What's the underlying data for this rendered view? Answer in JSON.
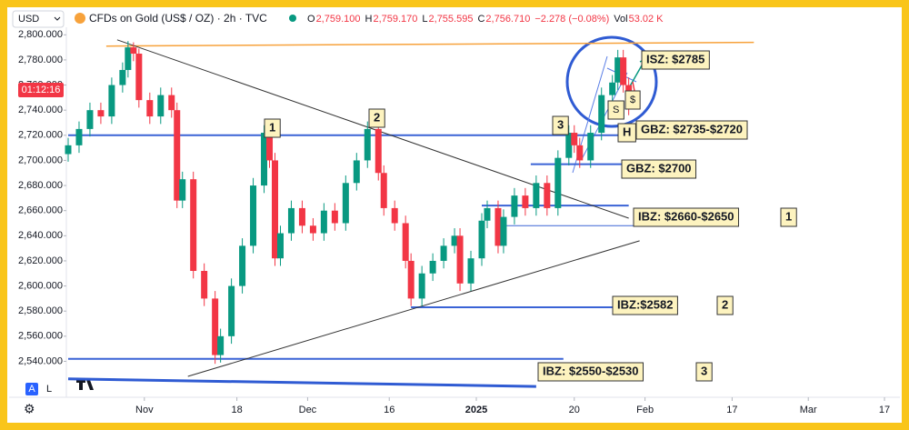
{
  "chart_data": {
    "type": "candlestick",
    "currency": "USD",
    "title": "CFDs on Gold (US$ / OZ) · 2h · TVC",
    "readout": [
      {
        "key": "O",
        "text": "2,759.100"
      },
      {
        "key": "H",
        "text": "2,759.170"
      },
      {
        "key": "L",
        "text": "2,755.595"
      },
      {
        "key": "C",
        "text": "2,756.710"
      },
      {
        "key": "",
        "text": "−2.278 (−0.08%)"
      },
      {
        "key": "Vol",
        "text": "53.02 K"
      }
    ],
    "countdown": "01:12:16",
    "buttons": [
      "A",
      "L"
    ],
    "xlim": [
      0,
      152
    ],
    "xticks": [
      {
        "value": 14,
        "label": "Nov"
      },
      {
        "value": 31,
        "label": "18"
      },
      {
        "value": 44,
        "label": "Dec"
      },
      {
        "value": 59,
        "label": "16"
      },
      {
        "value": 75,
        "label": "2025"
      },
      {
        "value": 93,
        "label": "20"
      },
      {
        "value": 106,
        "label": "Feb"
      },
      {
        "value": 122,
        "label": "17"
      },
      {
        "value": 136,
        "label": "Mar"
      },
      {
        "value": 150,
        "label": "17"
      }
    ],
    "ylim": [
      2515,
      2806
    ],
    "yticks": [
      {
        "value": 2540,
        "label": "2,540.000"
      },
      {
        "value": 2560,
        "label": "2,560.000"
      },
      {
        "value": 2580,
        "label": "2,580.000"
      },
      {
        "value": 2600,
        "label": "2,600.000"
      },
      {
        "value": 2620,
        "label": "2,620.000"
      },
      {
        "value": 2640,
        "label": "2,640.000"
      },
      {
        "value": 2660,
        "label": "2,660.000"
      },
      {
        "value": 2680,
        "label": "2,680.000"
      },
      {
        "value": 2700,
        "label": "2,700.000"
      },
      {
        "value": 2720,
        "label": "2,720.000"
      },
      {
        "value": 2740,
        "label": "2,740.000"
      },
      {
        "value": 2760,
        "label": "2,760.000"
      },
      {
        "value": 2780,
        "label": "2,780.000"
      },
      {
        "value": 2800,
        "label": "2,800.000"
      }
    ],
    "up_color": "#089981",
    "down_color": "#f23645",
    "x": [
      0,
      2,
      4,
      6,
      8,
      10,
      11,
      12,
      13,
      15,
      17,
      19,
      20,
      21,
      23,
      25,
      27,
      28,
      30,
      32,
      34,
      36,
      37,
      38,
      39,
      41,
      43,
      45,
      47,
      49,
      51,
      53,
      55,
      57,
      58,
      60,
      62,
      63,
      65,
      67,
      69,
      71,
      72,
      74,
      76,
      77,
      79,
      80,
      82,
      84,
      86,
      88,
      90,
      92,
      93,
      94,
      96,
      98,
      100,
      101,
      102,
      103
    ],
    "open": [
      2705,
      2712,
      2725,
      2740,
      2735,
      2760,
      2772,
      2790,
      2785,
      2748,
      2735,
      2752,
      2740,
      2668,
      2685,
      2612,
      2590,
      2545,
      2560,
      2600,
      2632,
      2680,
      2722,
      2700,
      2622,
      2642,
      2662,
      2648,
      2642,
      2660,
      2650,
      2682,
      2700,
      2725,
      2690,
      2662,
      2650,
      2620,
      2590,
      2610,
      2620,
      2632,
      2640,
      2602,
      2622,
      2652,
      2662,
      2632,
      2655,
      2672,
      2662,
      2682,
      2662,
      2702,
      2722,
      2712,
      2700,
      2722,
      2752,
      2762,
      2782,
      2760
    ],
    "high": [
      2718,
      2731,
      2746,
      2746,
      2766,
      2778,
      2795,
      2794,
      2789,
      2754,
      2758,
      2758,
      2746,
      2691,
      2691,
      2618,
      2596,
      2566,
      2606,
      2638,
      2686,
      2728,
      2728,
      2706,
      2648,
      2668,
      2668,
      2654,
      2666,
      2666,
      2688,
      2706,
      2731,
      2731,
      2696,
      2668,
      2656,
      2626,
      2616,
      2626,
      2638,
      2646,
      2646,
      2628,
      2658,
      2668,
      2668,
      2661,
      2678,
      2678,
      2688,
      2688,
      2708,
      2728,
      2728,
      2718,
      2728,
      2758,
      2768,
      2788,
      2788,
      2766
    ],
    "low": [
      2699,
      2706,
      2719,
      2729,
      2729,
      2754,
      2766,
      2779,
      2742,
      2729,
      2729,
      2734,
      2662,
      2662,
      2606,
      2584,
      2538,
      2539,
      2554,
      2594,
      2626,
      2674,
      2694,
      2616,
      2616,
      2636,
      2642,
      2636,
      2636,
      2644,
      2644,
      2676,
      2694,
      2684,
      2656,
      2644,
      2614,
      2584,
      2584,
      2604,
      2614,
      2626,
      2596,
      2596,
      2616,
      2646,
      2626,
      2626,
      2649,
      2656,
      2656,
      2656,
      2656,
      2696,
      2706,
      2694,
      2694,
      2716,
      2746,
      2756,
      2754,
      2736
    ],
    "close": [
      2712,
      2725,
      2740,
      2735,
      2760,
      2772,
      2790,
      2785,
      2748,
      2735,
      2752,
      2740,
      2668,
      2685,
      2612,
      2590,
      2545,
      2560,
      2600,
      2632,
      2680,
      2722,
      2700,
      2622,
      2642,
      2662,
      2648,
      2642,
      2660,
      2650,
      2682,
      2700,
      2725,
      2690,
      2662,
      2650,
      2620,
      2590,
      2610,
      2620,
      2632,
      2640,
      2602,
      2622,
      2652,
      2662,
      2632,
      2655,
      2672,
      2662,
      2682,
      2662,
      2702,
      2722,
      2712,
      2700,
      2722,
      2752,
      2762,
      2782,
      2760,
      2742
    ],
    "levels": [
      {
        "price": 2720,
        "from": 0,
        "to": 103
      },
      {
        "price": 2697,
        "from": 85,
        "to": 102
      },
      {
        "price": 2664,
        "from": 76,
        "to": 103
      },
      {
        "price": 2648,
        "from": 80,
        "to": 104
      },
      {
        "price": 2583,
        "from": 63,
        "to": 104
      },
      {
        "price": 2542,
        "from": 0,
        "to": 91
      }
    ],
    "trendlines": [
      {
        "color": "#f7a23b",
        "from": [
          7,
          2791
        ],
        "to": [
          126,
          2794
        ]
      },
      {
        "color": "#333333",
        "from": [
          9,
          2796
        ],
        "to": [
          103,
          2654
        ]
      },
      {
        "color": "#333333",
        "from": [
          22,
          2528
        ],
        "to": [
          105,
          2636
        ]
      },
      {
        "color": "#2f5bd3",
        "from": [
          0,
          2526
        ],
        "to": [
          86,
          2520
        ]
      }
    ],
    "annotations": [
      "ISZ: $2785",
      "H",
      "GBZ: $2735-$2720",
      "GBZ: $2700",
      "IBZ: $2660-$2650",
      "1",
      "IBZ:$2582",
      "2",
      "IBZ: $2550-$2530",
      "3"
    ],
    "wave_labels": [
      "1",
      "2",
      "3"
    ],
    "markers": [
      "S",
      "$"
    ]
  }
}
